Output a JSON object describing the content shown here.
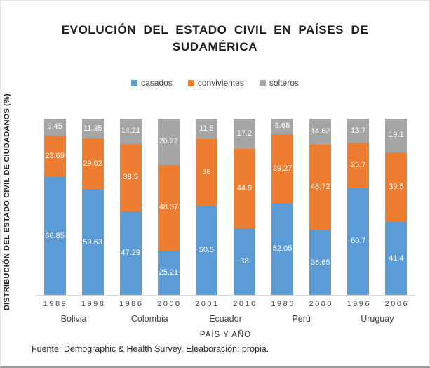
{
  "chart_data": {
    "type": "bar",
    "stacked": true,
    "title": "EVOLUCIÓN DEL ESTADO CIVIL EN PAÍSES DE SUDAMÉRICA",
    "title_lines": [
      "EVOLUCIÓN DEL ESTADO CIVIL EN PAÍSES DE",
      "SUDAMÉRICA"
    ],
    "xlabel": "PAÍS Y AÑO",
    "ylabel": "DISTRIBUCIÓN DEL ESTADO CIVIL DE CIUDADANOS (%)",
    "ylim": [
      0,
      100
    ],
    "grid": false,
    "legend_position": "top",
    "data_labels": true,
    "data_label_color": "#FFFFFF",
    "years": [
      "1989",
      "1998",
      "1986",
      "2000",
      "2001",
      "2010",
      "1986",
      "2000",
      "1996",
      "2006"
    ],
    "groups": [
      {
        "label": "Bolivia",
        "span": 2
      },
      {
        "label": "Colombia",
        "span": 2
      },
      {
        "label": "Ecuador",
        "span": 2
      },
      {
        "label": "Perú",
        "span": 2
      },
      {
        "label": "Uruguay",
        "span": 2
      }
    ],
    "series": [
      {
        "name": "casados",
        "color": "#5B9BD5",
        "values": [
          66.85,
          59.63,
          47.29,
          25.21,
          50.5,
          38,
          52.05,
          36.65,
          60.7,
          41.4
        ]
      },
      {
        "name": "convivientes",
        "color": "#ED7D31",
        "values": [
          23.69,
          29.02,
          38.5,
          48.57,
          38,
          44.9,
          39.27,
          48.72,
          25.7,
          39.5
        ]
      },
      {
        "name": "solteros",
        "color": "#A5A5A5",
        "values": [
          9.45,
          11.35,
          14.21,
          26.22,
          11.5,
          17.2,
          8.68,
          14.62,
          13.7,
          19.1
        ]
      }
    ]
  },
  "footer": {
    "source": "Fuente: Demographic & Health Survey. Eleaboración: propia."
  }
}
